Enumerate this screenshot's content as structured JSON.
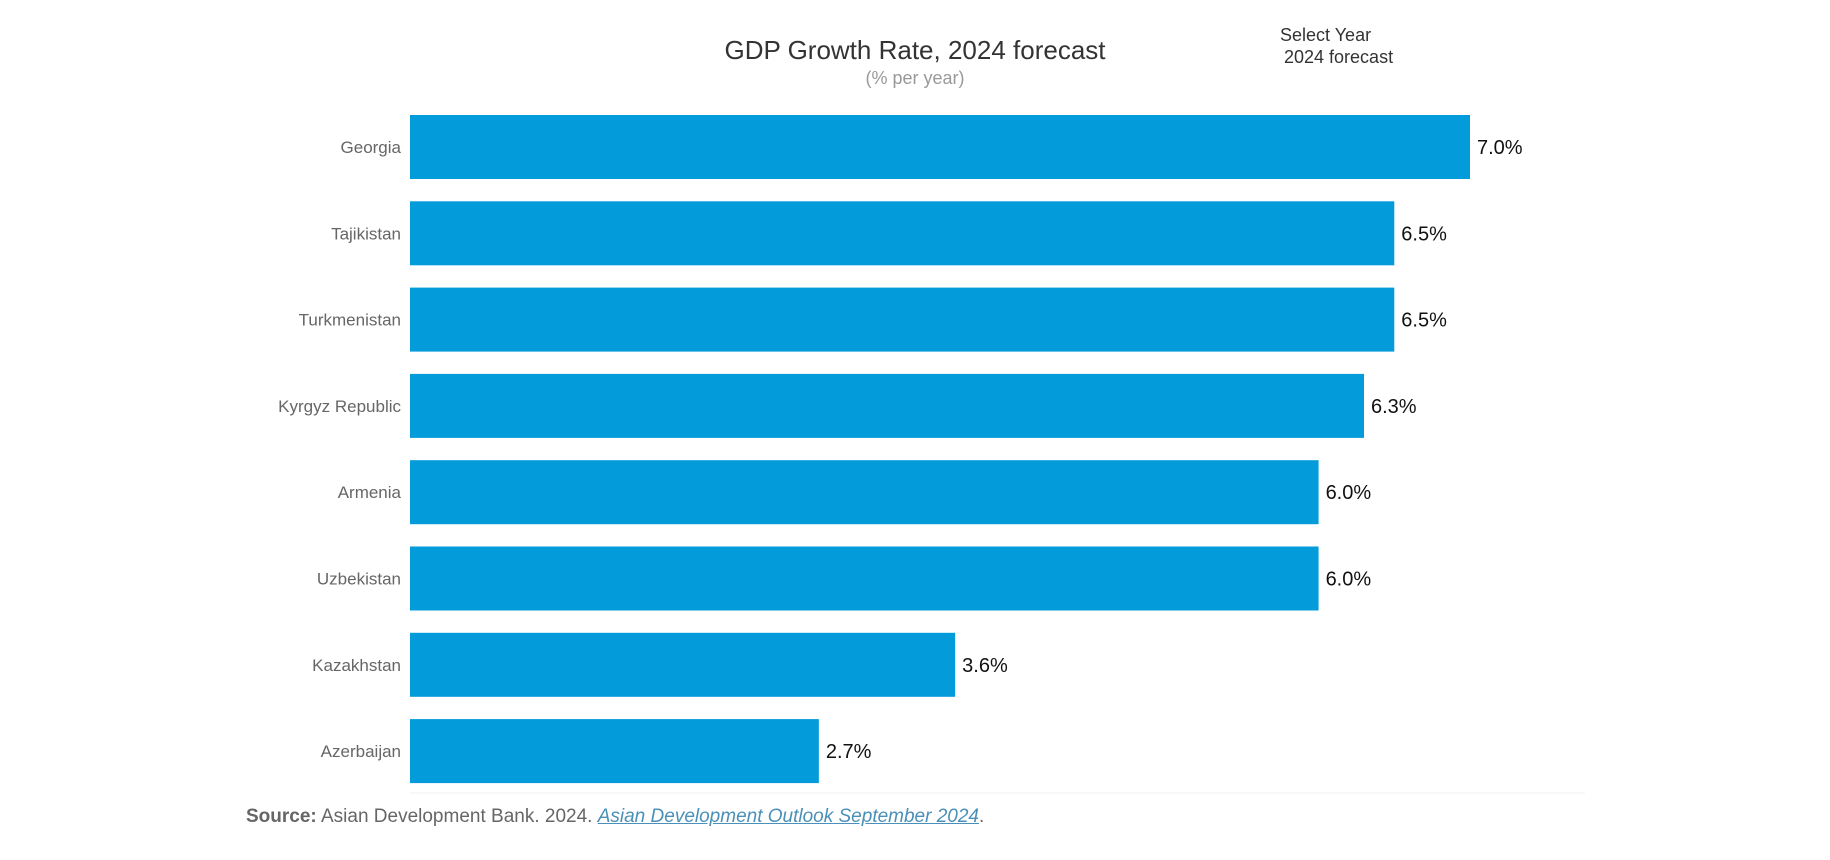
{
  "selector": {
    "label": "Select Year",
    "value": "2024 forecast"
  },
  "source": {
    "prefix": "Source:",
    "text": " Asian Development Bank. 2024. ",
    "link_text": "Asian Development Outlook September 2024",
    "suffix": "."
  },
  "colors": {
    "bar": "#039bd9"
  },
  "chart_data": {
    "type": "bar",
    "orientation": "horizontal",
    "title": "GDP Growth Rate, 2024 forecast",
    "subtitle": "(% per year)",
    "categories": [
      "Georgia",
      "Tajikistan",
      "Turkmenistan",
      "Kyrgyz Republic",
      "Armenia",
      "Uzbekistan",
      "Kazakhstan",
      "Azerbaijan"
    ],
    "values": [
      7.0,
      6.5,
      6.5,
      6.3,
      6.0,
      6.0,
      3.6,
      2.7
    ],
    "value_labels": [
      "7.0%",
      "6.5%",
      "6.5%",
      "6.3%",
      "6.0%",
      "6.0%",
      "3.6%",
      "2.7%"
    ],
    "xlim": [
      0,
      7.0
    ],
    "grid": false,
    "legend": "none"
  }
}
